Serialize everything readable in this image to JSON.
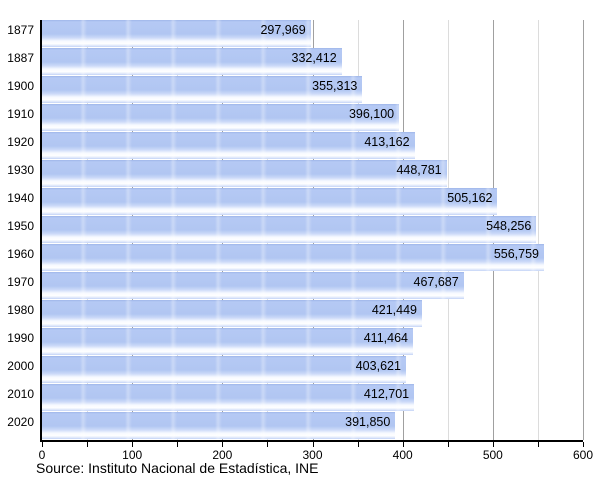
{
  "chart_data": {
    "type": "bar",
    "orientation": "horizontal",
    "title": "",
    "xlabel": "",
    "ylabel": "",
    "categories": [
      "1877",
      "1887",
      "1900",
      "1910",
      "1920",
      "1930",
      "1940",
      "1950",
      "1960",
      "1970",
      "1980",
      "1990",
      "2000",
      "2010",
      "2020"
    ],
    "values": [
      297969,
      332412,
      355313,
      396100,
      413162,
      448781,
      505162,
      548256,
      556759,
      467687,
      421449,
      411464,
      403621,
      412701,
      391850
    ],
    "value_labels": [
      "297,969",
      "332,412",
      "355,313",
      "396,100",
      "413,162",
      "448,781",
      "505,162",
      "548,256",
      "556,759",
      "467,687",
      "421,449",
      "411,464",
      "403,621",
      "412,701",
      "391,850"
    ],
    "x_axis": {
      "tick_labels": [
        "0",
        "100",
        "200",
        "300",
        "400",
        "500",
        "600"
      ],
      "max": 600000,
      "major_tick_step": 100000,
      "minor_tick_step": 50000,
      "grid": true,
      "legend": "none"
    },
    "source": "Source: Instituto Nacional de Estadística, INE",
    "colors": {
      "bar": "#b1c6f2",
      "bar_gloss": "#ffffff",
      "major_grid": "#a0a0a0",
      "minor_grid": "#dcdcdc",
      "axis": "#000000",
      "text": "#000000",
      "background": "#ffffff"
    }
  }
}
